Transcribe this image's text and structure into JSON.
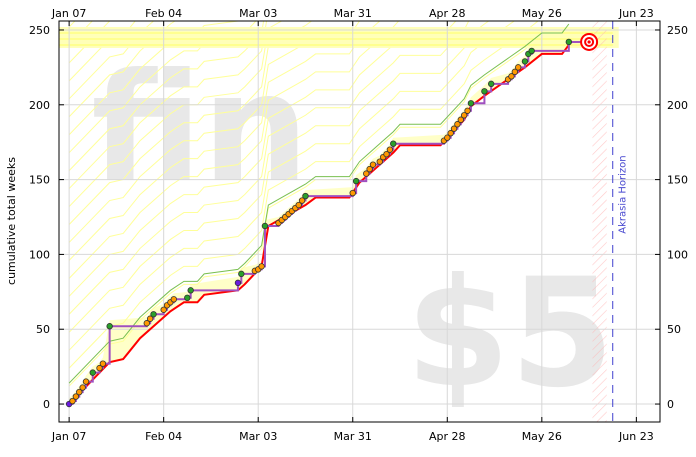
{
  "chart_data": {
    "type": "line",
    "ylabel": "cumulative total weeks",
    "x_ticks": [
      "Jan 07",
      "Feb 04",
      "Mar 03",
      "Mar 31",
      "Apr 28",
      "May 26",
      "Jun 23"
    ],
    "y_ticks": [
      0,
      50,
      100,
      150,
      200,
      250
    ],
    "x_range": [
      "2024-01-04",
      "2024-06-30"
    ],
    "ylim": [
      -12,
      256
    ],
    "watermark_status": "fin",
    "watermark_pledge": "$5",
    "horizon_label": "Akrasia Horizon",
    "grid": true,
    "colors": {
      "road": "#ffff00",
      "bright_line": "#ff0000",
      "aura": "#a050c0",
      "guide": "#7ac050",
      "datapoint": "#ff9900",
      "datapoint_ok": "#2aa02a",
      "start_point": "#6a1ae0",
      "horizon": "#4040d0",
      "bullseye": "#ff0000"
    },
    "series": [
      {
        "name": "",
        "kind": "datapoints",
        "points": [
          [
            "2024-01-07",
            0
          ],
          [
            "2024-01-08",
            2
          ],
          [
            "2024-01-09",
            5
          ],
          [
            "2024-01-10",
            8
          ],
          [
            "2024-01-11",
            11
          ],
          [
            "2024-01-12",
            15
          ],
          [
            "2024-01-14",
            21
          ],
          [
            "2024-01-16",
            24
          ],
          [
            "2024-01-17",
            27
          ],
          [
            "2024-01-19",
            52
          ],
          [
            "2024-01-30",
            54
          ],
          [
            "2024-01-31",
            57
          ],
          [
            "2024-02-01",
            60
          ],
          [
            "2024-02-04",
            63
          ],
          [
            "2024-02-05",
            66
          ],
          [
            "2024-02-06",
            68
          ],
          [
            "2024-02-07",
            70
          ],
          [
            "2024-02-11",
            71
          ],
          [
            "2024-02-12",
            76
          ],
          [
            "2024-02-26",
            81
          ],
          [
            "2024-02-27",
            87
          ],
          [
            "2024-03-02",
            89
          ],
          [
            "2024-03-03",
            90
          ],
          [
            "2024-03-04",
            92
          ],
          [
            "2024-03-05",
            119
          ],
          [
            "2024-03-09",
            121
          ],
          [
            "2024-03-10",
            123
          ],
          [
            "2024-03-11",
            125
          ],
          [
            "2024-03-12",
            127
          ],
          [
            "2024-03-13",
            129
          ],
          [
            "2024-03-14",
            131
          ],
          [
            "2024-03-15",
            133
          ],
          [
            "2024-03-16",
            136
          ],
          [
            "2024-03-17",
            139
          ],
          [
            "2024-03-31",
            141
          ],
          [
            "2024-04-01",
            149
          ],
          [
            "2024-04-04",
            154
          ],
          [
            "2024-04-05",
            157
          ],
          [
            "2024-04-06",
            160
          ],
          [
            "2024-04-08",
            162
          ],
          [
            "2024-04-09",
            165
          ],
          [
            "2024-04-10",
            167
          ],
          [
            "2024-04-11",
            170
          ],
          [
            "2024-04-12",
            174
          ],
          [
            "2024-04-27",
            176
          ],
          [
            "2024-04-28",
            178
          ],
          [
            "2024-04-29",
            181
          ],
          [
            "2024-04-30",
            184
          ],
          [
            "2024-05-01",
            187
          ],
          [
            "2024-05-02",
            190
          ],
          [
            "2024-05-03",
            193
          ],
          [
            "2024-05-04",
            196
          ],
          [
            "2024-05-05",
            201
          ],
          [
            "2024-05-09",
            209
          ],
          [
            "2024-05-11",
            214
          ],
          [
            "2024-05-16",
            217
          ],
          [
            "2024-05-17",
            219
          ],
          [
            "2024-05-18",
            222
          ],
          [
            "2024-05-19",
            225
          ],
          [
            "2024-05-21",
            229
          ],
          [
            "2024-05-22",
            234
          ],
          [
            "2024-05-23",
            236
          ],
          [
            "2024-06-03",
            242
          ],
          [
            "2024-06-09",
            242
          ]
        ]
      },
      {
        "name": "",
        "kind": "bright-line",
        "points": [
          [
            "2024-01-07",
            0
          ],
          [
            "2024-01-19",
            28
          ],
          [
            "2024-01-23",
            30
          ],
          [
            "2024-01-28",
            44
          ],
          [
            "2024-02-06",
            62
          ],
          [
            "2024-02-10",
            68
          ],
          [
            "2024-02-14",
            68
          ],
          [
            "2024-02-16",
            73
          ],
          [
            "2024-02-26",
            76
          ],
          [
            "2024-02-28",
            80
          ],
          [
            "2024-03-04",
            92
          ],
          [
            "2024-03-06",
            119
          ],
          [
            "2024-03-17",
            133
          ],
          [
            "2024-03-20",
            138
          ],
          [
            "2024-03-30",
            138
          ],
          [
            "2024-04-02",
            148
          ],
          [
            "2024-04-12",
            168
          ],
          [
            "2024-04-14",
            173
          ],
          [
            "2024-04-26",
            173
          ],
          [
            "2024-05-03",
            190
          ],
          [
            "2024-05-05",
            199
          ],
          [
            "2024-05-09",
            206
          ],
          [
            "2024-05-21",
            225
          ],
          [
            "2024-05-26",
            234
          ],
          [
            "2024-06-01",
            234
          ],
          [
            "2024-06-03",
            240
          ]
        ]
      }
    ]
  }
}
